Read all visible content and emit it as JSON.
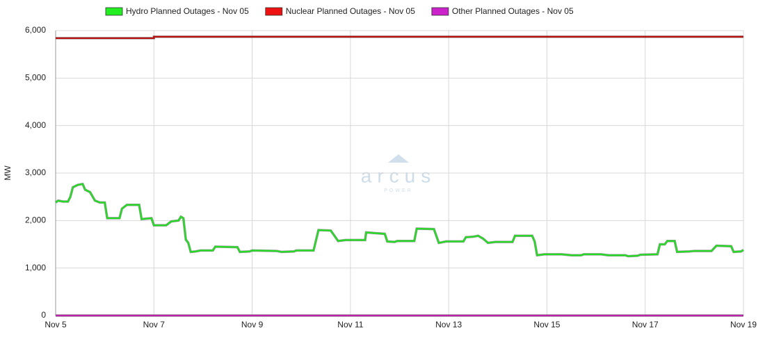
{
  "chart_data": {
    "type": "line",
    "y_label": "MW",
    "watermark": {
      "name": "arcus",
      "tagline": "POWER"
    },
    "xlim": [
      5,
      19
    ],
    "xticks": [
      {
        "value": 5,
        "label": "Nov 5"
      },
      {
        "value": 7,
        "label": "Nov 7"
      },
      {
        "value": 9,
        "label": "Nov 9"
      },
      {
        "value": 11,
        "label": "Nov 11"
      },
      {
        "value": 13,
        "label": "Nov 13"
      },
      {
        "value": 15,
        "label": "Nov 15"
      },
      {
        "value": 17,
        "label": "Nov 17"
      },
      {
        "value": 19,
        "label": "Nov 19"
      }
    ],
    "ylim": [
      0,
      6000
    ],
    "yticks": [
      0,
      {
        "value": 1000,
        "label": "1,000"
      },
      {
        "value": 2000,
        "label": "2,000"
      },
      {
        "value": 3000,
        "label": "3,000"
      },
      {
        "value": 4000,
        "label": "4,000"
      },
      {
        "value": 5000,
        "label": "5,000"
      },
      {
        "value": 6000,
        "label": "6,000"
      }
    ],
    "grid": true,
    "series": [
      {
        "name": "Hydro Planned Outages - Nov 05",
        "color": "#22dd22",
        "legend_color": "#22ee22",
        "x": [
          5.0,
          5.05,
          5.15,
          5.25,
          5.3,
          5.35,
          5.45,
          5.55,
          5.6,
          5.7,
          5.8,
          5.9,
          6.0,
          6.05,
          6.3,
          6.35,
          6.45,
          6.7,
          6.75,
          6.95,
          7.0,
          7.25,
          7.35,
          7.5,
          7.55,
          7.6,
          7.65,
          7.7,
          7.75,
          7.85,
          7.95,
          8.2,
          8.25,
          8.7,
          8.75,
          8.95,
          9.0,
          9.5,
          9.6,
          9.85,
          9.9,
          10.25,
          10.35,
          10.6,
          10.75,
          10.9,
          11.3,
          11.32,
          11.45,
          11.7,
          11.75,
          11.9,
          11.95,
          12.3,
          12.35,
          12.7,
          12.8,
          12.95,
          13.3,
          13.35,
          13.5,
          13.6,
          13.7,
          13.8,
          13.95,
          14.3,
          14.35,
          14.7,
          14.75,
          14.8,
          14.95,
          15.3,
          15.5,
          15.7,
          15.75,
          16.1,
          16.25,
          16.6,
          16.65,
          16.85,
          16.9,
          17.25,
          17.3,
          17.4,
          17.45,
          17.6,
          17.65,
          17.9,
          18.0,
          18.35,
          18.45,
          18.75,
          18.8,
          18.95,
          19.0
        ],
        "values": [
          2380,
          2420,
          2400,
          2400,
          2500,
          2700,
          2750,
          2770,
          2650,
          2600,
          2420,
          2380,
          2380,
          2050,
          2050,
          2250,
          2330,
          2330,
          2030,
          2050,
          1900,
          1900,
          1980,
          2000,
          2080,
          2050,
          1600,
          1530,
          1340,
          1350,
          1370,
          1370,
          1450,
          1440,
          1340,
          1350,
          1370,
          1360,
          1340,
          1350,
          1370,
          1370,
          1800,
          1790,
          1570,
          1590,
          1590,
          1750,
          1740,
          1720,
          1560,
          1550,
          1570,
          1570,
          1830,
          1820,
          1530,
          1560,
          1560,
          1650,
          1660,
          1680,
          1620,
          1530,
          1550,
          1550,
          1680,
          1680,
          1560,
          1270,
          1290,
          1290,
          1270,
          1270,
          1290,
          1290,
          1270,
          1270,
          1250,
          1260,
          1280,
          1290,
          1500,
          1500,
          1570,
          1570,
          1340,
          1350,
          1360,
          1360,
          1470,
          1460,
          1340,
          1350,
          1380
        ]
      },
      {
        "name": "Nuclear Planned Outages - Nov 05",
        "color": "#bb1111",
        "legend_color": "#ee1111",
        "x": [
          5.0,
          7.0,
          7.0,
          19.0
        ],
        "values": [
          5840,
          5840,
          5870,
          5870
        ]
      },
      {
        "name": "Other Planned Outages - Nov 05",
        "color": "#bb22aa",
        "legend_color": "#cc22cc",
        "x": [
          5.0,
          19.0
        ],
        "values": [
          0,
          0
        ]
      }
    ]
  }
}
